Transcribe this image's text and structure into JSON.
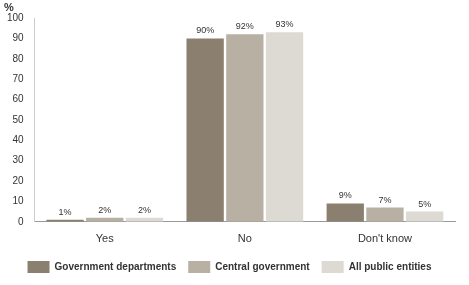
{
  "chart_data": {
    "type": "bar",
    "y_label": "%",
    "categories": [
      "Yes",
      "No",
      "Don't know"
    ],
    "series": [
      {
        "name": "Government departments",
        "color": "#8b8070",
        "values": [
          1,
          90,
          9
        ],
        "value_labels": [
          "1%",
          "90%",
          "9%"
        ]
      },
      {
        "name": "Central government",
        "color": "#b7b0a3",
        "values": [
          2,
          92,
          7
        ],
        "value_labels": [
          "2%",
          "92%",
          "7%"
        ]
      },
      {
        "name": "All public entities",
        "color": "#dddad4",
        "values": [
          2,
          93,
          5
        ],
        "value_labels": [
          "2%",
          "93%",
          "5%"
        ]
      }
    ],
    "ylim": [
      0,
      100
    ],
    "yticks": [
      0,
      10,
      20,
      30,
      40,
      50,
      60,
      70,
      80,
      90,
      100
    ],
    "grid": false,
    "legend": "bottom",
    "data_labels": true
  }
}
